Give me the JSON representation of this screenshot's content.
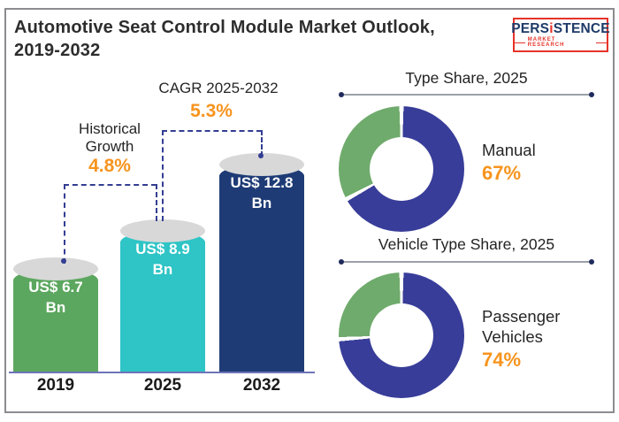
{
  "header": {
    "title_line1": "Automotive Seat Control Module Market Outlook,",
    "title_line2": "2019-2032"
  },
  "logo": {
    "brand_prefix": "PERS",
    "brand_i": "i",
    "brand_suffix": "STENCE",
    "tagline": "MARKET RESEARCH"
  },
  "colors": {
    "accent_orange": "#f7941e",
    "dash_navy": "#333e92",
    "axis_line": "#6e74b8",
    "cylinder_top_gray": "#d8d8d8",
    "logo_navy": "#1e3a68",
    "logo_red": "#e63329"
  },
  "chart_data": [
    {
      "type": "bar",
      "title": "Automotive Seat Control Module Market Outlook, 2019-2032",
      "unit": "US$ Bn",
      "categories": [
        "2019",
        "2025",
        "2032"
      ],
      "values": [
        6.7,
        8.9,
        12.8
      ],
      "bars": [
        {
          "category": "2019",
          "value": 6.7,
          "label_line1": "US$ 6.7",
          "label_line2": "Bn",
          "color": "#5ca75f"
        },
        {
          "category": "2025",
          "value": 8.9,
          "label_line1": "US$ 8.9",
          "label_line2": "Bn",
          "color": "#2fc4c6"
        },
        {
          "category": "2032",
          "value": 12.8,
          "label_line1": "US$ 12.8",
          "label_line2": "Bn",
          "color": "#1e3b76"
        }
      ],
      "annotations": [
        {
          "label": "Historical Growth",
          "value": "4.8%",
          "from": "2019",
          "to": "2025"
        },
        {
          "label": "CAGR 2025-2032",
          "value": "5.3%",
          "from": "2025",
          "to": "2032"
        }
      ],
      "ylim": [
        0,
        13
      ],
      "grid": false,
      "legend": false
    },
    {
      "type": "pie",
      "title": "Type Share, 2025",
      "slices": [
        {
          "label": "Manual",
          "value": 67,
          "display": "67%",
          "color": "#383d99"
        },
        {
          "label": "",
          "value": 33,
          "display": "",
          "color": "#6fab6c"
        }
      ],
      "donut": true,
      "legend": "right"
    },
    {
      "type": "pie",
      "title": "Vehicle Type Share, 2025",
      "slices": [
        {
          "label": "Passenger Vehicles",
          "value": 74,
          "display": "74%",
          "color": "#383d99"
        },
        {
          "label": "",
          "value": 26,
          "display": "",
          "color": "#6fab6c"
        }
      ],
      "donut": true,
      "legend": "right"
    }
  ]
}
